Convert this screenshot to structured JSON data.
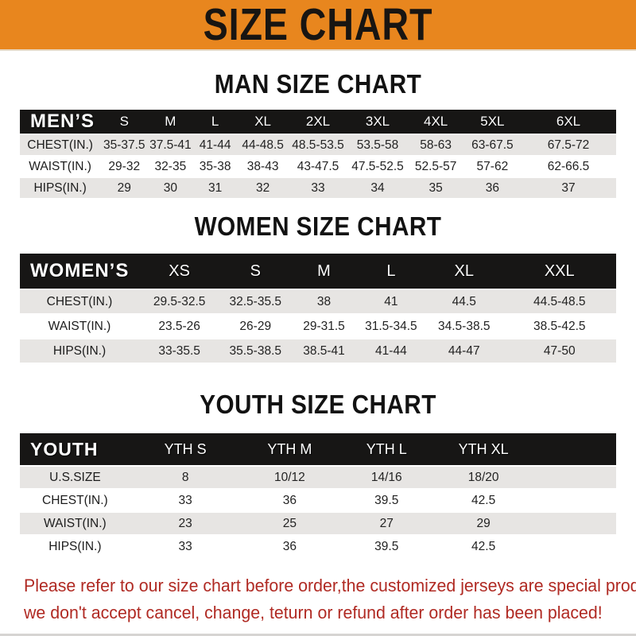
{
  "banner": {
    "title": "SIZE CHART"
  },
  "colors": {
    "banner_bg": "#e8861e",
    "table_header_bg": "#171615",
    "row_alt_bg": "#e7e5e3",
    "note_red": "#b02a23"
  },
  "tables": {
    "men": {
      "heading": "MAN SIZE CHART",
      "corner_label": "MEN’S",
      "columns": [
        "S",
        "M",
        "L",
        "XL",
        "2XL",
        "3XL",
        "4XL",
        "5XL",
        "6XL"
      ],
      "col_widths": [
        "13.5%",
        "8%",
        "7.5%",
        "7.5%",
        "8.5%",
        "10%",
        "10%",
        "9.5%",
        "9.5%",
        "16%"
      ],
      "rows": [
        {
          "label": "CHEST(IN.)",
          "values": [
            "35-37.5",
            "37.5-41",
            "41-44",
            "44-48.5",
            "48.5-53.5",
            "53.5-58",
            "58-63",
            "63-67.5",
            "67.5-72"
          ]
        },
        {
          "label": "WAIST(IN.)",
          "values": [
            "29-32",
            "32-35",
            "35-38",
            "38-43",
            "43-47.5",
            "47.5-52.5",
            "52.5-57",
            "57-62",
            "62-66.5"
          ]
        },
        {
          "label": "HIPS(IN.)",
          "values": [
            "29",
            "30",
            "31",
            "32",
            "33",
            "34",
            "35",
            "36",
            "37"
          ]
        }
      ]
    },
    "women": {
      "heading": "WOMEN SIZE CHART",
      "corner_label": "WOMEN’S",
      "columns": [
        "XS",
        "S",
        "M",
        "L",
        "XL",
        "XXL"
      ],
      "col_widths": [
        "20%",
        "13.5%",
        "12%",
        "11%",
        "11.5%",
        "13%",
        "19%"
      ],
      "rows": [
        {
          "label": "CHEST(IN.)",
          "values": [
            "29.5-32.5",
            "32.5-35.5",
            "38",
            "41",
            "44.5",
            "44.5-48.5"
          ]
        },
        {
          "label": "WAIST(IN.)",
          "values": [
            "23.5-26",
            "26-29",
            "29-31.5",
            "31.5-34.5",
            "34.5-38.5",
            "38.5-42.5"
          ]
        },
        {
          "label": "HIPS(IN.)",
          "values": [
            "33-35.5",
            "35.5-38.5",
            "38.5-41",
            "41-44",
            "44-47",
            "47-50"
          ]
        }
      ]
    },
    "youth": {
      "heading": "YOUTH SIZE CHART",
      "corner_label": "YOUTH",
      "columns": [
        "YTH S",
        "YTH M",
        "YTH L",
        "YTH XL"
      ],
      "filler_columns": 1,
      "col_widths": [
        "18.5%",
        "18.5%",
        "16.5%",
        "16%",
        "16.5%",
        "14%"
      ],
      "rows": [
        {
          "label": "U.S.SIZE",
          "values": [
            "8",
            "10/12",
            "14/16",
            "18/20"
          ]
        },
        {
          "label": "CHEST(IN.)",
          "values": [
            "33",
            "36",
            "39.5",
            "42.5"
          ]
        },
        {
          "label": "WAIST(IN.)",
          "values": [
            "23",
            "25",
            "27",
            "29"
          ]
        },
        {
          "label": "HIPS(IN.)",
          "values": [
            "33",
            "36",
            "39.5",
            "42.5"
          ]
        }
      ]
    }
  },
  "note": {
    "line1": "Please refer to our size chart before order,the customized jerseys are special products,",
    "line2": "we don't accept cancel, change, teturn or refund after order has been placed!"
  }
}
